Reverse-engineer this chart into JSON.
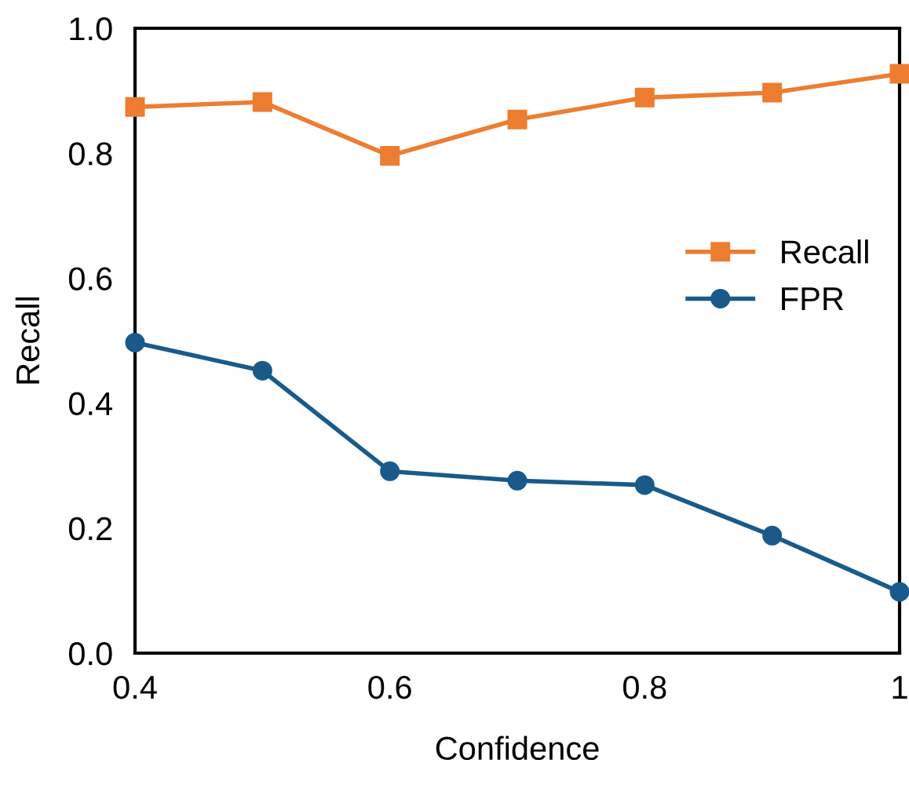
{
  "chart_data": {
    "type": "line",
    "xlabel": "Confidence",
    "ylabel": "Recall",
    "xlim": [
      0.4,
      1.0
    ],
    "xticks": [
      0.4,
      0.6,
      0.8,
      {
        "value": 1.0,
        "label": "1"
      }
    ],
    "ylim": [
      0,
      1.0
    ],
    "yticks": [
      {
        "value": 0,
        "label": "0.0"
      },
      0.2,
      0.4,
      0.6,
      0.8,
      {
        "value": 1.0,
        "label": "1.0"
      }
    ],
    "grid": false,
    "legend": "right",
    "line_style": "solid",
    "series": [
      {
        "name": "Recall",
        "color": "#ed7d31",
        "marker": "square",
        "x": [
          0.4,
          0.5,
          0.6,
          0.7,
          0.8,
          0.9,
          1.0
        ],
        "values": [
          0.874,
          0.882,
          0.796,
          0.854,
          0.889,
          0.897,
          0.927
        ]
      },
      {
        "name": "FPR",
        "color": "#1a5a8a",
        "marker": "circle",
        "x": [
          0.4,
          0.5,
          0.6,
          0.7,
          0.8,
          0.9,
          1.0
        ],
        "values": [
          0.497,
          0.452,
          0.291,
          0.276,
          0.269,
          0.188,
          0.098
        ]
      }
    ]
  }
}
